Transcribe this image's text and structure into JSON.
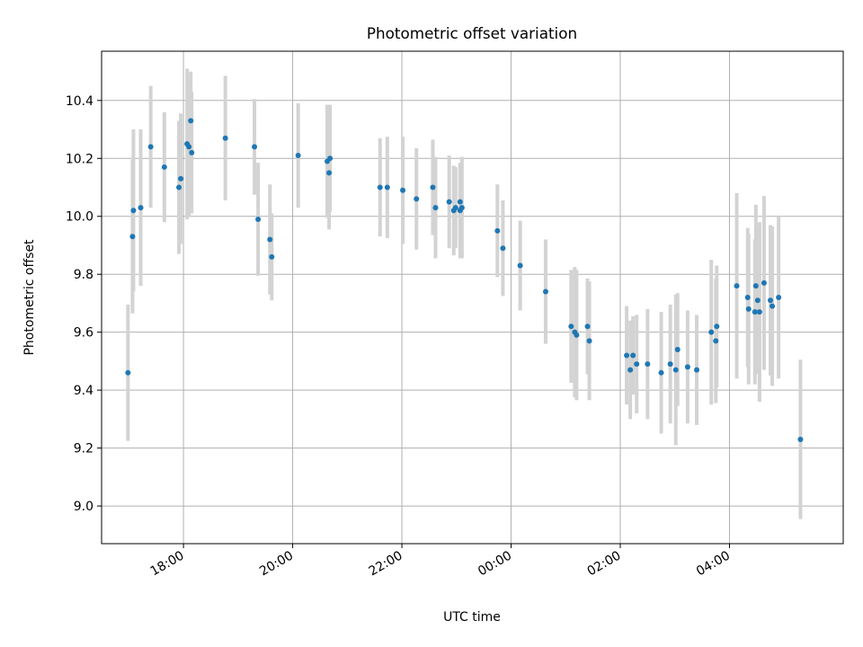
{
  "chart_data": {
    "type": "scatter",
    "title": "Photometric offset variation",
    "xlabel": "UTC time",
    "ylabel": "Photometric offset",
    "x_tick_labels": [
      "18:00",
      "20:00",
      "22:00",
      "00:00",
      "02:00",
      "04:00"
    ],
    "x_tick_times": [
      "18:00",
      "20:00",
      "22:00",
      "00:00",
      "02:00",
      "04:00"
    ],
    "y_ticks": [
      9.0,
      9.2,
      9.4,
      9.6,
      9.8,
      10.0,
      10.2,
      10.4
    ],
    "y_tick_labels": [
      "9.0",
      "9.2",
      "9.4",
      "9.6",
      "9.8",
      "10.0",
      "10.2",
      "10.4"
    ],
    "xlim": [
      "16:30",
      "06:05"
    ],
    "ylim": [
      8.87,
      10.57
    ],
    "grid": true,
    "marker_color": "#1f77b4",
    "errorbar_color": "#d3d3d3",
    "series": [
      {
        "x": [
          "16:59",
          "17:04",
          "17:05",
          "17:13",
          "17:24",
          "17:39",
          "17:55",
          "17:57",
          "18:04",
          "18:06",
          "18:08",
          "18:09",
          "18:46",
          "19:18",
          "19:22",
          "19:35",
          "19:37",
          "20:06",
          "20:38",
          "20:40",
          "20:41",
          "21:36",
          "21:44",
          "22:01",
          "22:16",
          "22:34",
          "22:37",
          "22:52",
          "22:57",
          "22:59",
          "23:04",
          "23:04",
          "23:06",
          "23:45",
          "23:51",
          "00:10",
          "00:38",
          "01:06",
          "01:10",
          "01:12",
          "01:24",
          "01:26",
          "02:07",
          "02:11",
          "02:14",
          "02:18",
          "02:30",
          "02:45",
          "02:55",
          "03:01",
          "03:03",
          "03:14",
          "03:24",
          "03:40",
          "03:45",
          "03:46",
          "04:08",
          "04:20",
          "04:21",
          "04:28",
          "04:29",
          "04:31",
          "04:33",
          "04:38",
          "04:45",
          "04:47",
          "04:54",
          "05:18"
        ],
        "y": [
          9.46,
          9.93,
          10.02,
          10.03,
          10.24,
          10.17,
          10.1,
          10.13,
          10.25,
          10.24,
          10.33,
          10.22,
          10.27,
          10.24,
          9.99,
          9.92,
          9.86,
          10.21,
          10.19,
          10.15,
          10.2,
          10.1,
          10.1,
          10.09,
          10.06,
          10.1,
          10.03,
          10.05,
          10.02,
          10.03,
          10.05,
          10.02,
          10.03,
          9.95,
          9.89,
          9.83,
          9.74,
          9.62,
          9.6,
          9.59,
          9.62,
          9.57,
          9.52,
          9.47,
          9.52,
          9.49,
          9.49,
          9.46,
          9.49,
          9.47,
          9.54,
          9.48,
          9.47,
          9.6,
          9.57,
          9.62,
          9.76,
          9.72,
          9.68,
          9.67,
          9.76,
          9.71,
          9.67,
          9.77,
          9.71,
          9.69,
          9.72,
          9.23
        ],
        "yerr": [
          0.235,
          0.265,
          0.28,
          0.27,
          0.21,
          0.19,
          0.23,
          0.225,
          0.26,
          0.24,
          0.17,
          0.21,
          0.215,
          0.165,
          0.195,
          0.19,
          0.15,
          0.18,
          0.195,
          0.195,
          0.185,
          0.17,
          0.175,
          0.185,
          0.175,
          0.165,
          0.175,
          0.16,
          0.155,
          0.14,
          0.135,
          0.165,
          0.175,
          0.16,
          0.165,
          0.155,
          0.18,
          0.195,
          0.225,
          0.225,
          0.165,
          0.205,
          0.17,
          0.17,
          0.135,
          0.17,
          0.19,
          0.21,
          0.205,
          0.26,
          0.195,
          0.195,
          0.19,
          0.25,
          0.215,
          0.21,
          0.32,
          0.24,
          0.26,
          0.25,
          0.28,
          0.255,
          0.31,
          0.3,
          0.26,
          0.275,
          0.28,
          0.275
        ]
      }
    ]
  }
}
